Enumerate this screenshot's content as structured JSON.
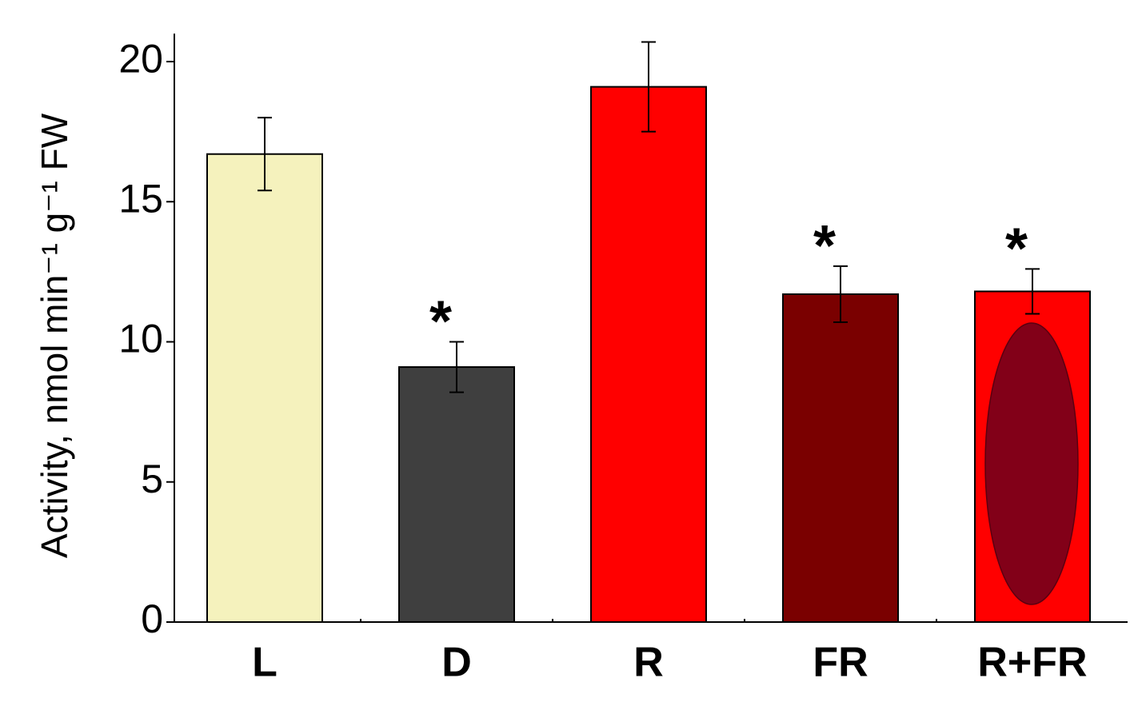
{
  "chart_data": {
    "type": "bar",
    "y_label": "Activity, nmol min⁻¹ g⁻¹ FW",
    "categories": [
      "L",
      "D",
      "R",
      "FR",
      "R+FR"
    ],
    "values": [
      16.7,
      9.1,
      19.1,
      11.7,
      11.8
    ],
    "errors": [
      1.3,
      0.9,
      1.6,
      1.0,
      0.8
    ],
    "colors": [
      "#f5f2bd",
      "#3f3f3f",
      "#ff0000",
      "#7a0000",
      "#ff0000"
    ],
    "significance": [
      null,
      "*",
      null,
      "*",
      "*"
    ],
    "ylim": [
      0,
      21
    ],
    "yticks": [
      0,
      5,
      10,
      15,
      20
    ],
    "grid": false
  }
}
